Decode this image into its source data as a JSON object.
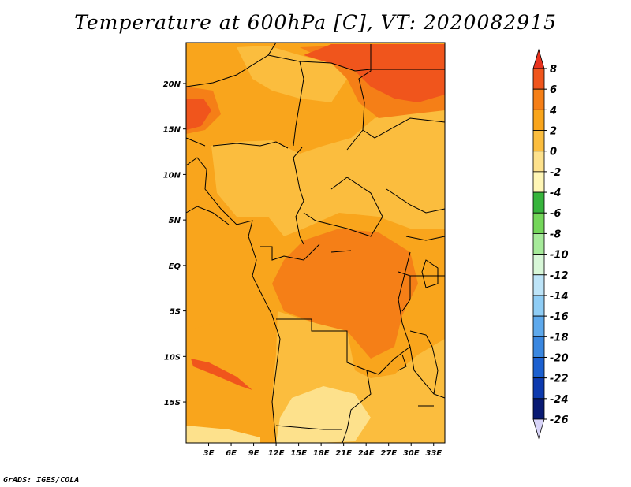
{
  "chart_data": {
    "type": "heatmap",
    "title": "Temperature at 600hPa [C], VT: 2020082915",
    "variable": "Temperature at 600hPa",
    "units": "C",
    "valid_time": "2020082915",
    "xlim": [
      0,
      34.5
    ],
    "ylim": [
      -19.5,
      24.5
    ],
    "x_ticks": [
      {
        "value": 3,
        "label": "3E"
      },
      {
        "value": 6,
        "label": "6E"
      },
      {
        "value": 9,
        "label": "9E"
      },
      {
        "value": 12,
        "label": "12E"
      },
      {
        "value": 15,
        "label": "15E"
      },
      {
        "value": 18,
        "label": "18E"
      },
      {
        "value": 21,
        "label": "21E"
      },
      {
        "value": 24,
        "label": "24E"
      },
      {
        "value": 27,
        "label": "27E"
      },
      {
        "value": 30,
        "label": "30E"
      },
      {
        "value": 33,
        "label": "33E"
      }
    ],
    "y_ticks": [
      {
        "value": 20,
        "label": "20N"
      },
      {
        "value": 15,
        "label": "15N"
      },
      {
        "value": 10,
        "label": "10N"
      },
      {
        "value": 5,
        "label": "5N"
      },
      {
        "value": 0,
        "label": "EQ"
      },
      {
        "value": -5,
        "label": "5S"
      },
      {
        "value": -10,
        "label": "10S"
      },
      {
        "value": -15,
        "label": "15S"
      }
    ],
    "colorbar": {
      "levels": [
        "8",
        "6",
        "4",
        "2",
        "0",
        "-2",
        "-4",
        "-6",
        "-8",
        "-10",
        "-12",
        "-14",
        "-16",
        "-18",
        "-20",
        "-22",
        "-24",
        "-26"
      ],
      "colors": [
        "#e8321e",
        "#f0551c",
        "#f57f17",
        "#f9a51c",
        "#fbbd3e",
        "#fde18c",
        "#fff6b6",
        "#37b43c",
        "#74d65a",
        "#a6ea9a",
        "#d8f7d8",
        "#bde4f8",
        "#8fcdf5",
        "#5ea9ec",
        "#3a87e0",
        "#1c60d0",
        "#0d3aae",
        "#091a73",
        "#d8d4f8"
      ]
    },
    "fields": [
      {
        "level": "2 to 4",
        "color": "#f9a51c",
        "note": "background"
      },
      {
        "level": "0 to 2",
        "color": "#fbbd3e",
        "note": "central/southern interior"
      },
      {
        "level": "-2 to 0",
        "color": "#fde18c",
        "note": "far south"
      },
      {
        "level": "4 to 6",
        "color": "#f57f17",
        "note": "Congo basin, northern Sahara"
      },
      {
        "level": "6 to 8",
        "color": "#f0551c",
        "note": "north-east corner, Angolan coast"
      }
    ]
  },
  "credit": "GrADS: IGES/COLA",
  "colors": {
    "frame": "#000000",
    "coast": "#000000"
  }
}
